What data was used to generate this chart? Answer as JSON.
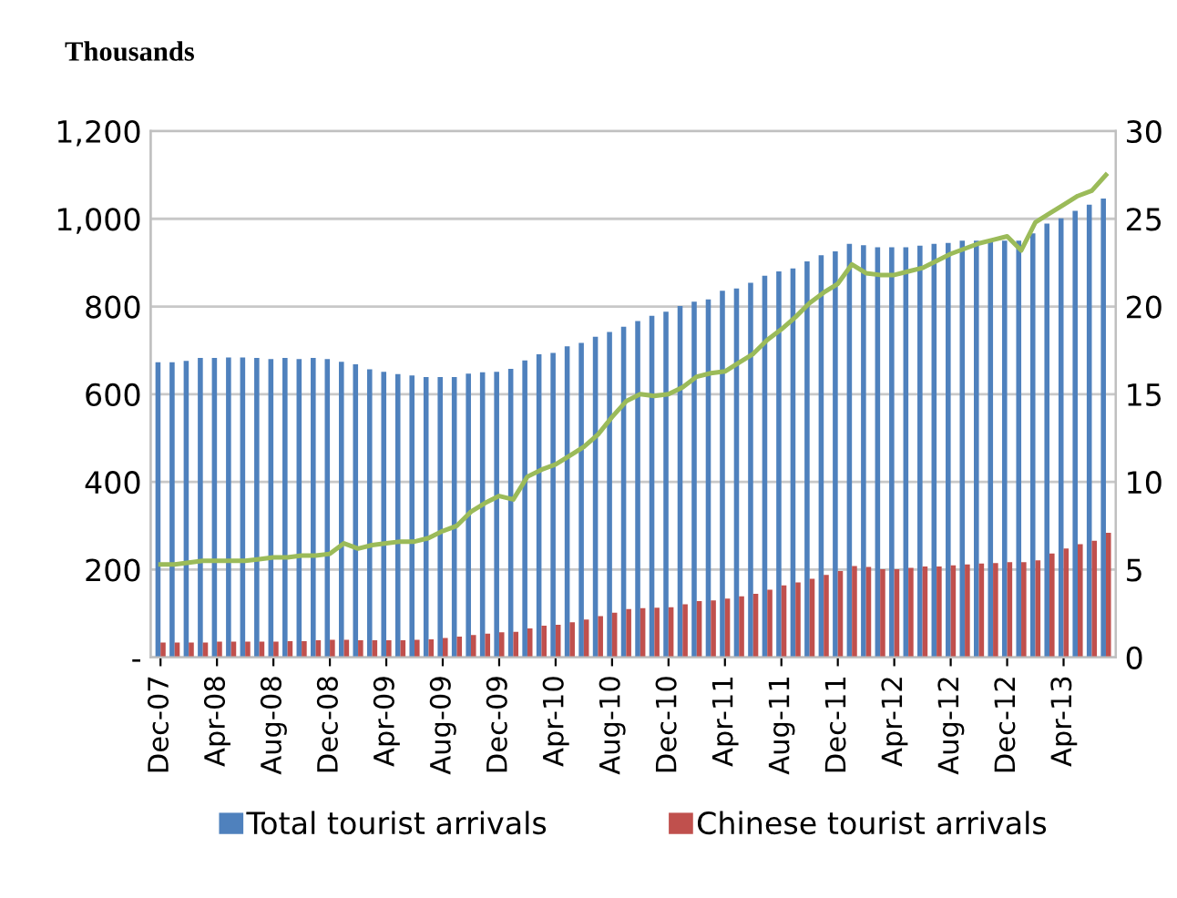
{
  "chart_data": {
    "type": "bar",
    "title": "Thousands",
    "categories": [
      "Dec-07",
      null,
      null,
      null,
      "Apr-08",
      null,
      null,
      null,
      "Aug-08",
      null,
      null,
      null,
      "Dec-08",
      null,
      null,
      null,
      "Apr-09",
      null,
      null,
      null,
      "Aug-09",
      null,
      null,
      null,
      "Dec-09",
      null,
      null,
      null,
      "Apr-10",
      null,
      null,
      null,
      "Aug-10",
      null,
      null,
      null,
      "Dec-10",
      null,
      null,
      null,
      "Apr-11",
      null,
      null,
      null,
      "Aug-11",
      null,
      null,
      null,
      "Dec-11",
      null,
      null,
      null,
      "Apr-12",
      null,
      null,
      null,
      "Aug-12",
      null,
      null,
      null,
      "Dec-12",
      null,
      null,
      null,
      "Apr-13",
      null,
      null,
      null
    ],
    "series": [
      {
        "name": "Total tourist arrivals",
        "color": "#4f81bd",
        "values": [
          673,
          673,
          676,
          683,
          683,
          684,
          684,
          683,
          680,
          683,
          680,
          683,
          680,
          674,
          668,
          657,
          651,
          646,
          643,
          639,
          639,
          639,
          647,
          650,
          651,
          658,
          677,
          691,
          694,
          709,
          717,
          731,
          742,
          754,
          767,
          779,
          788,
          801,
          811,
          816,
          836,
          841,
          854,
          870,
          880,
          887,
          903,
          917,
          926,
          943,
          940,
          935,
          935,
          935,
          939,
          943,
          945,
          950,
          950,
          949,
          950,
          950,
          967,
          989,
          1001,
          1018,
          1032,
          1046
        ]
      },
      {
        "name": "Chinese tourist arrivals",
        "color": "#c0504d",
        "values": [
          34,
          34,
          34,
          34,
          36,
          36,
          36,
          36,
          36,
          37,
          37,
          39,
          40,
          40,
          39,
          39,
          39,
          39,
          40,
          41,
          44,
          47,
          51,
          54,
          57,
          58,
          66,
          72,
          74,
          80,
          86,
          94,
          102,
          110,
          112,
          113,
          114,
          121,
          128,
          130,
          134,
          139,
          145,
          154,
          164,
          171,
          179,
          188,
          197,
          208,
          206,
          201,
          201,
          204,
          207,
          207,
          210,
          212,
          214,
          215,
          217,
          217,
          221,
          237,
          248,
          258,
          266,
          284
        ]
      },
      {
        "type": "line",
        "axis": "y2",
        "color": "#9bbb59",
        "values": [
          5.3,
          5.3,
          5.4,
          5.5,
          5.5,
          5.5,
          5.5,
          5.6,
          5.7,
          5.7,
          5.8,
          5.8,
          5.9,
          6.5,
          6.2,
          6.4,
          6.5,
          6.6,
          6.6,
          6.8,
          7.2,
          7.5,
          8.3,
          8.8,
          9.2,
          9.0,
          10.3,
          10.7,
          11.0,
          11.5,
          12.0,
          12.7,
          13.7,
          14.6,
          15.0,
          14.9,
          15.0,
          15.4,
          16.0,
          16.2,
          16.3,
          16.8,
          17.3,
          18.1,
          18.7,
          19.4,
          20.2,
          20.8,
          21.3,
          22.4,
          21.9,
          21.8,
          21.8,
          22.0,
          22.2,
          22.6,
          23.0,
          23.3,
          23.6,
          23.8,
          24.0,
          23.2,
          24.8,
          25.3,
          25.8,
          26.3,
          26.6,
          27.5
        ]
      }
    ],
    "ylim": [
      0,
      1200
    ],
    "yticks": [
      {
        "value": 0,
        "label": "-"
      },
      {
        "value": 200,
        "label": "200"
      },
      {
        "value": 400,
        "label": "400"
      },
      {
        "value": 600,
        "label": "600"
      },
      {
        "value": 800,
        "label": "800"
      },
      {
        "value": 1000,
        "label": "1,000"
      },
      {
        "value": 1200,
        "label": "1,200"
      }
    ],
    "y2lim": [
      0,
      30
    ],
    "y2ticks": [
      0,
      5,
      10,
      15,
      20,
      25,
      30
    ],
    "grid": "y",
    "legend": "bottom"
  }
}
